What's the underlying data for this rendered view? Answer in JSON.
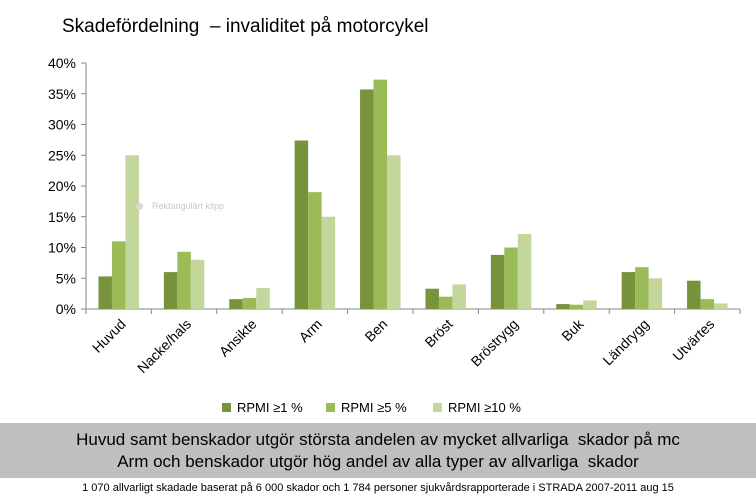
{
  "chart_data": {
    "type": "bar",
    "title": "Skadefördelning  – invaliditet på motorcykel",
    "categories": [
      "Huvud",
      "Nacke/hals",
      "Ansikte",
      "Arm",
      "Ben",
      "Bröst",
      "Bröstrygg",
      "Buk",
      "Ländrygg",
      "Utvärtes"
    ],
    "series": [
      {
        "name": "RPMI ≥1 %",
        "color": "#77933c",
        "values": [
          5.3,
          6.0,
          1.6,
          27.4,
          35.7,
          3.3,
          8.8,
          0.8,
          6.0,
          4.6
        ]
      },
      {
        "name": "RPMI ≥5 %",
        "color": "#9bbb59",
        "values": [
          11.0,
          9.3,
          1.8,
          19.0,
          37.3,
          2.0,
          10.0,
          0.7,
          6.8,
          1.6
        ]
      },
      {
        "name": "RPMI ≥10 %",
        "color": "#c3d69b",
        "values": [
          25.0,
          8.0,
          3.4,
          15.0,
          25.0,
          4.0,
          12.2,
          1.4,
          5.0,
          0.9
        ]
      }
    ],
    "ylim": [
      0,
      40
    ],
    "yticks": [
      0,
      5,
      10,
      15,
      20,
      25,
      30,
      35,
      40
    ],
    "ytick_labels": [
      "0%",
      "5%",
      "10%",
      "15%",
      "20%",
      "25%",
      "30%",
      "35%",
      "40%"
    ],
    "grid": false,
    "legend": "bottom"
  },
  "watermark_text": "Rektangulärt klipp",
  "banner": {
    "line1": "Huvud samt benskador utgör största andelen av mycket allvarliga  skador på mc",
    "line2": "Arm och benskador utgör hög andel av alla typer av allvarliga  skador"
  },
  "footnote": "1 070 allvarligt skadade baserat på 6 000 skador och 1 784 personer sjukvårdsrapporterade  i STRADA 2007-2011 aug 15"
}
